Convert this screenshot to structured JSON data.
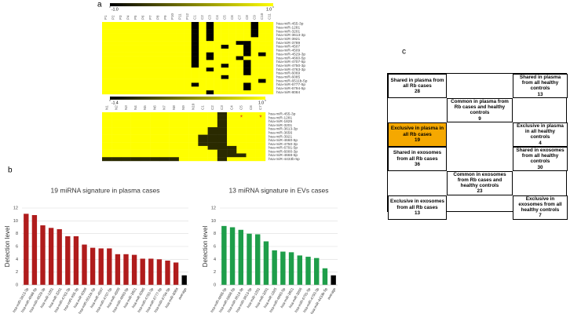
{
  "panels": [
    "a",
    "b",
    "c"
  ],
  "chart_data": [
    {
      "type": "heatmap",
      "columns": [
        "P1",
        "P2",
        "P3",
        "P4",
        "P5",
        "P6",
        "P7",
        "P8",
        "P9",
        "P10",
        "P11",
        "P12",
        "C1",
        "C2",
        "C3",
        "C4",
        "C5",
        "C6",
        "C7",
        "C8",
        "C9",
        "C10",
        "C11"
      ],
      "rows": [
        "hsa-miR-455-3p",
        "hsa-miR-1281",
        "hsa-miR-3201",
        "hsa-miR-3613-3p",
        "hsa-miR-3921",
        "hsa-miR-3789",
        "hsa-miR-4507",
        "hsa-miR-4509",
        "hsa-miR-4529-3p",
        "hsa-miR-4660-5p",
        "hsa-miR-4707-5p",
        "hsa-miR-4750-3p",
        "hsa-miR-4763-3p",
        "hsa-miR-6069",
        "hsa-miR-6085",
        "hsa-miR-6511b-5p",
        "hsa-miR-6777-5p",
        "hsa-miR-6794-5p",
        "hsa-miR-8084"
      ],
      "values": [
        [
          1,
          1,
          1,
          1,
          1,
          1,
          1,
          1,
          1,
          1,
          1,
          1,
          -1,
          1,
          -1,
          1,
          1,
          1,
          1,
          1,
          -1,
          1,
          1
        ],
        [
          1,
          1,
          1,
          1,
          1,
          1,
          1,
          1,
          1,
          1,
          1,
          1,
          -1,
          1,
          -1,
          1,
          1,
          1,
          1,
          1,
          -1,
          1,
          1
        ],
        [
          1,
          1,
          1,
          1,
          1,
          1,
          1,
          1,
          1,
          1,
          1,
          1,
          -1,
          1,
          -1,
          1,
          1,
          1,
          1,
          1,
          -1,
          1,
          1
        ],
        [
          1,
          1,
          1,
          1,
          1,
          1,
          1,
          1,
          1,
          1,
          1,
          1,
          -1,
          1,
          -1,
          1,
          1,
          1,
          1,
          1,
          -1,
          1,
          1
        ],
        [
          1,
          1,
          1,
          1,
          1,
          1,
          1,
          1,
          1,
          1,
          1,
          1,
          -1,
          1,
          -1,
          1,
          1,
          1,
          1,
          1,
          1,
          1,
          1
        ],
        [
          1,
          1,
          1,
          1,
          1,
          1,
          1,
          1,
          1,
          1,
          1,
          1,
          -1,
          1,
          1,
          1,
          1,
          1,
          -1,
          -1,
          1,
          1,
          1
        ],
        [
          1,
          1,
          1,
          1,
          1,
          1,
          1,
          1,
          1,
          1,
          1,
          1,
          -1,
          1,
          1,
          1,
          -1,
          1,
          1,
          -1,
          1,
          1,
          1
        ],
        [
          1,
          1,
          1,
          1,
          1,
          1,
          1,
          1,
          1,
          1,
          1,
          1,
          -1,
          1,
          1,
          1,
          1,
          1,
          1,
          -1,
          1,
          1,
          1
        ],
        [
          1,
          1,
          1,
          1,
          1,
          1,
          1,
          1,
          1,
          1,
          1,
          1,
          -1,
          1,
          -1,
          1,
          1,
          1,
          1,
          -1,
          1,
          -1,
          1
        ],
        [
          1,
          1,
          1,
          1,
          1,
          1,
          1,
          1,
          1,
          1,
          1,
          1,
          -1,
          1,
          -1,
          1,
          1,
          1,
          -1,
          1,
          1,
          1,
          1
        ],
        [
          1,
          1,
          1,
          1,
          1,
          1,
          1,
          1,
          1,
          1,
          1,
          1,
          -1,
          1,
          1,
          1,
          1,
          1,
          1,
          -1,
          1,
          1,
          1
        ],
        [
          1,
          1,
          1,
          1,
          1,
          1,
          1,
          1,
          1,
          1,
          1,
          1,
          -1,
          1,
          1,
          1,
          -1,
          1,
          1,
          -1,
          1,
          1,
          1
        ],
        [
          1,
          1,
          1,
          1,
          1,
          1,
          1,
          1,
          1,
          1,
          1,
          1,
          1,
          1,
          -1,
          1,
          1,
          1,
          1,
          -1,
          1,
          1,
          1
        ],
        [
          1,
          1,
          1,
          1,
          1,
          1,
          1,
          1,
          1,
          1,
          1,
          1,
          1,
          1,
          1,
          1,
          1,
          1,
          1,
          -1,
          1,
          1,
          1
        ],
        [
          1,
          1,
          1,
          1,
          1,
          1,
          1,
          1,
          1,
          1,
          1,
          1,
          1,
          1,
          1,
          1,
          -1,
          1,
          1,
          1,
          1,
          1,
          1
        ],
        [
          1,
          1,
          1,
          1,
          1,
          1,
          1,
          1,
          1,
          1,
          1,
          1,
          1,
          1,
          1,
          1,
          1,
          1,
          1,
          1,
          1,
          -1,
          1
        ],
        [
          1,
          1,
          1,
          1,
          1,
          1,
          1,
          1,
          1,
          1,
          1,
          1,
          -1,
          1,
          1,
          1,
          1,
          1,
          1,
          -1,
          1,
          1,
          1
        ],
        [
          1,
          1,
          1,
          1,
          1,
          1,
          1,
          1,
          1,
          1,
          1,
          1,
          1,
          1,
          1,
          1,
          1,
          1,
          1,
          -1,
          1,
          1,
          1
        ],
        [
          1,
          1,
          1,
          1,
          1,
          1,
          1,
          1,
          1,
          1,
          1,
          1,
          1,
          1,
          -1,
          1,
          1,
          1,
          1,
          1,
          1,
          1,
          1
        ]
      ],
      "clim": [
        -1,
        1
      ],
      "colorbar": {
        "colors": [
          "#000000",
          "#ffff00"
        ],
        "ticks": [
          {
            "value": -1,
            "label": "-1.0"
          },
          {
            "value": 1,
            "label": "1.0"
          }
        ]
      }
    },
    {
      "type": "heatmap",
      "columns": [
        "N1",
        "N2",
        "N3",
        "N4",
        "N5",
        "N6",
        "N7",
        "N8",
        "N9",
        "N10",
        "C1",
        "C2",
        "C3",
        "C4",
        "C5",
        "C6",
        "C7"
      ],
      "rows": [
        "hsa-miR-455-3p",
        "hsa-miR-1281",
        "hsa-miR-1825",
        "hsa-miR-3201",
        "hsa-miR-3613-3p",
        "hsa-miR-3656",
        "hsa-miR-3921",
        "hsa-miR-4660-5p",
        "hsa-miR-4750-3p",
        "hsa-miR-6791-5p",
        "hsa-miR-6000-3p",
        "hsa-miR-4668-5p",
        "hsa-miR-4433b-5p"
      ],
      "values": [
        [
          1,
          1,
          1,
          1,
          1,
          1,
          1,
          1,
          1,
          1,
          1,
          1,
          -1,
          1,
          1,
          1,
          1
        ],
        [
          1,
          1,
          1,
          1,
          1,
          1,
          1,
          1,
          1,
          1,
          1,
          1,
          -1,
          1,
          1,
          1,
          1
        ],
        [
          1,
          1,
          1,
          1,
          1,
          1,
          1,
          1,
          1,
          1,
          1,
          1,
          -1,
          1,
          1,
          1,
          1
        ],
        [
          1,
          1,
          1,
          1,
          1,
          1,
          1,
          1,
          1,
          1,
          1,
          1,
          -1,
          1,
          1,
          1,
          1
        ],
        [
          1,
          1,
          1,
          1,
          1,
          1,
          1,
          1,
          1,
          1,
          1,
          -1,
          -1,
          1,
          1,
          1,
          1
        ],
        [
          1,
          1,
          1,
          1,
          1,
          1,
          1,
          1,
          1,
          1,
          1,
          -1,
          -1,
          1,
          1,
          1,
          1
        ],
        [
          1,
          1,
          1,
          1,
          1,
          1,
          1,
          1,
          1,
          1,
          -1,
          -1,
          -1,
          1,
          1,
          1,
          1
        ],
        [
          1,
          1,
          1,
          1,
          1,
          1,
          1,
          1,
          1,
          1,
          -1,
          -1,
          -1,
          1,
          1,
          1,
          1
        ],
        [
          1,
          1,
          1,
          1,
          1,
          1,
          1,
          1,
          1,
          1,
          -1,
          -1,
          -1,
          1,
          1,
          1,
          1
        ],
        [
          1,
          1,
          1,
          1,
          1,
          1,
          1,
          1,
          1,
          1,
          1,
          -1,
          -1,
          -1,
          1,
          1,
          1
        ],
        [
          1,
          1,
          1,
          1,
          1,
          1,
          1,
          1,
          1,
          1,
          1,
          1,
          -1,
          -1,
          1,
          1,
          1
        ],
        [
          1,
          1,
          1,
          1,
          1,
          1,
          1,
          1,
          1,
          1,
          1,
          1,
          -1,
          -1,
          -1,
          1,
          1
        ],
        [
          -1,
          -1,
          -1,
          -1,
          -1,
          -1,
          -1,
          -1,
          1,
          1,
          1,
          1,
          -1,
          1,
          1,
          1,
          1
        ]
      ],
      "clim": [
        -1.4,
        1
      ],
      "colorbar": {
        "colors": [
          "#000000",
          "#ffff00"
        ],
        "ticks": [
          {
            "value": -1.4,
            "label": "-1.4"
          },
          {
            "value": 1,
            "label": "1.0"
          }
        ]
      },
      "annotations": [
        "*",
        "*"
      ]
    },
    {
      "type": "bar",
      "title": "19 miRNA signature in plasma cases",
      "y_label": "Detection level",
      "categories": [
        "hsa-miR-3613-3p",
        "hsa-miR-4668-5p",
        "hsa-miR-4529-3p",
        "hsa-miR-1281",
        "hsa-miR-3201",
        "hsa-miR-4763-3p",
        "hsa-miR-455-3p",
        "hsa-miR-6069",
        "hsa-miR-6511b-5p",
        "hsa-miR-4507",
        "hsa-miR-4707-5p",
        "hsa-miR-4509",
        "hsa-miR-4660-5p",
        "hsa-miR-3921",
        "hsa-miR-6085",
        "hsa-miR-4750-3p",
        "hsa-miR-6777-5p",
        "hsa-miR-6794-5p",
        "hsa-miR-8084",
        "average"
      ],
      "values": [
        11.1,
        10.9,
        9.3,
        8.9,
        8.7,
        7.6,
        7.6,
        6.3,
        5.8,
        5.7,
        5.7,
        4.8,
        4.8,
        4.7,
        4.1,
        4.1,
        4.0,
        3.8,
        3.5,
        1.5
      ],
      "colors": [
        "#b01c1c",
        "#b01c1c",
        "#b01c1c",
        "#b01c1c",
        "#b01c1c",
        "#b01c1c",
        "#b01c1c",
        "#b01c1c",
        "#b01c1c",
        "#b01c1c",
        "#b01c1c",
        "#b01c1c",
        "#b01c1c",
        "#b01c1c",
        "#b01c1c",
        "#b01c1c",
        "#b01c1c",
        "#b01c1c",
        "#b01c1c",
        "#000000"
      ],
      "ylim": [
        0,
        12
      ],
      "yticks": [
        0,
        2,
        4,
        6,
        8,
        10,
        12
      ],
      "grid": true
    },
    {
      "type": "bar",
      "title": "13 miRNA signature in EVs cases",
      "y_label": "Detection level",
      "categories": [
        "hsa-miR-4668-5p",
        "hsa-miR-6858-5p",
        "hsa-miR-3613-3p",
        "hsa-miR-3613-5p",
        "hsa-miR-1281",
        "hsa-miR-3201",
        "hsa-miR-1825",
        "hsa-miR-4660-5p",
        "hsa-miR-3921",
        "hsa-miR-3656",
        "hsa-miR-6791-5p",
        "hsa-miR-4750-3p",
        "hsa-miR-4433b-5p",
        "average"
      ],
      "values": [
        9.2,
        9.0,
        8.6,
        8.0,
        7.9,
        6.8,
        5.4,
        5.2,
        5.1,
        4.6,
        4.4,
        4.2,
        2.6,
        1.5
      ],
      "colors": [
        "#1e9e4a",
        "#1e9e4a",
        "#1e9e4a",
        "#1e9e4a",
        "#1e9e4a",
        "#1e9e4a",
        "#1e9e4a",
        "#1e9e4a",
        "#1e9e4a",
        "#1e9e4a",
        "#1e9e4a",
        "#1e9e4a",
        "#1e9e4a",
        "#000000"
      ],
      "ylim": [
        0,
        12
      ],
      "yticks": [
        0,
        2,
        4,
        6,
        8,
        10,
        12
      ],
      "grid": true
    }
  ],
  "diagram": {
    "cells": [
      {
        "text": "Shared in plasma from all Rb cases",
        "number": "28"
      },
      {
        "text": "Shared in plasma from all healthy controls",
        "number": "13"
      },
      {
        "text": "Common in plasma from Rb cases and healthy controls",
        "number": "9"
      },
      {
        "text": "Exclusive in plasma in all Rb cases",
        "number": "19"
      },
      {
        "text": "Exclusive in plasma in all healthy controls",
        "number": "4"
      },
      {
        "text": "Shared in exosomes from all Rb cases",
        "number": "36"
      },
      {
        "text": "Shared in exosomes from all healthy controls",
        "number": "30"
      },
      {
        "text": "Common in exosomes from Rb cases and healthy controls",
        "number": "23"
      },
      {
        "text": "Exclusive in exosomes from all Rb cases",
        "number": "13"
      },
      {
        "text": "Exclusive in exosomes from all healthy controls",
        "number": "7"
      }
    ]
  }
}
